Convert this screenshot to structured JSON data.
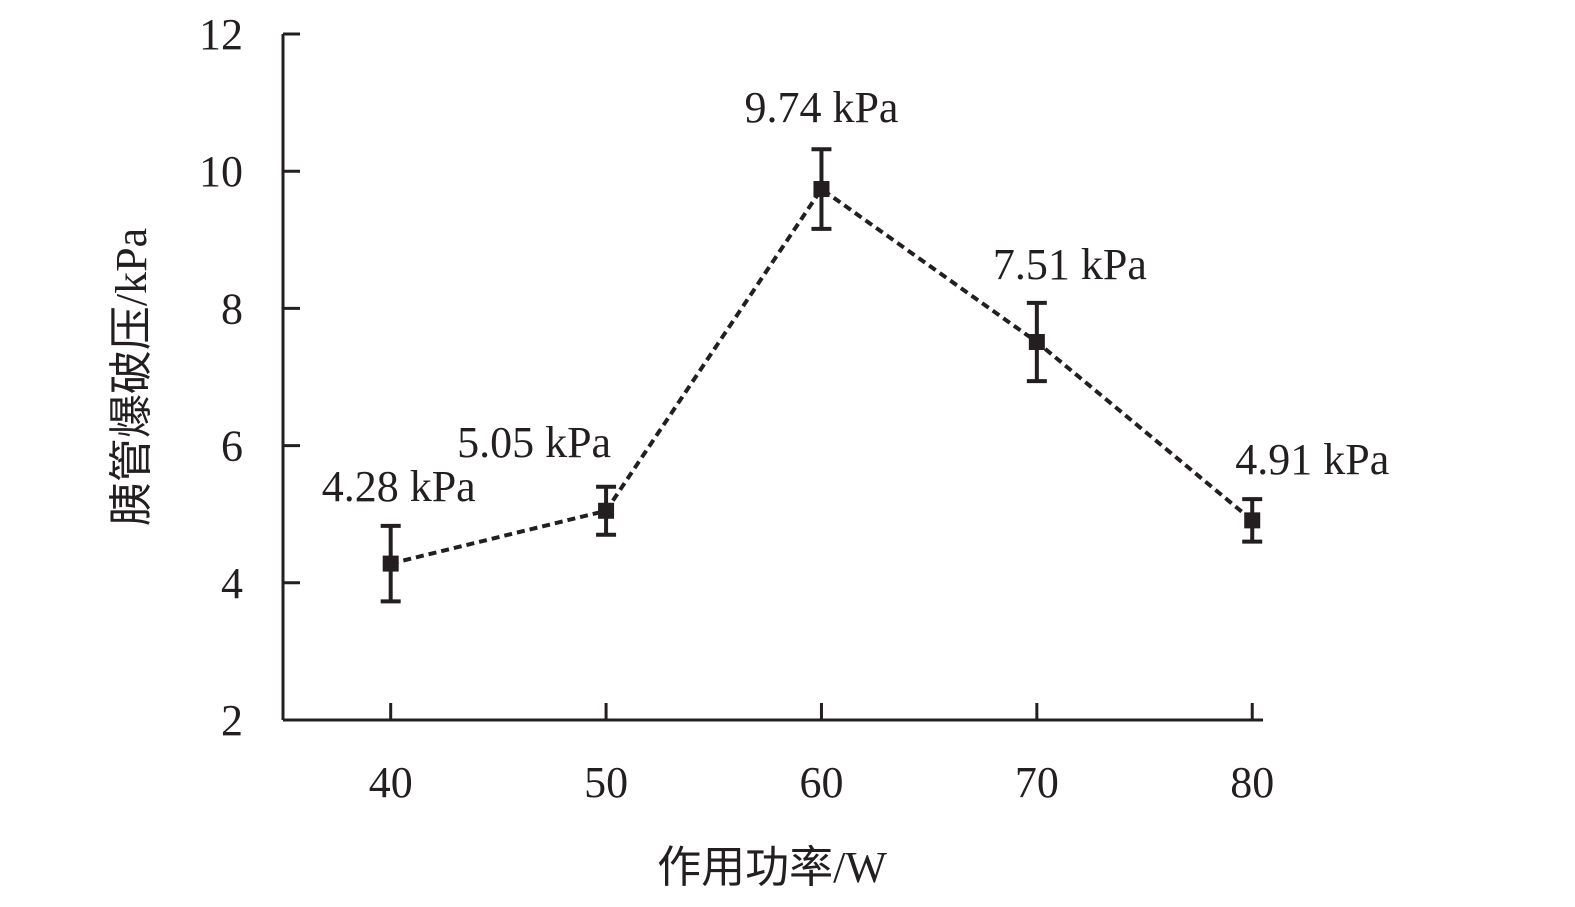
{
  "chart_data": {
    "type": "line",
    "xlabel": "作用功率/W",
    "ylabel": "胰管爆破压/kPa",
    "x": [
      40,
      50,
      60,
      70,
      80
    ],
    "xticks": [
      40,
      50,
      60,
      70,
      80
    ],
    "xlim": [
      35,
      80.5
    ],
    "ylim": [
      2,
      12
    ],
    "yticks": [
      2,
      4,
      6,
      8,
      10,
      12
    ],
    "grid": false,
    "legend": "none",
    "line_style": "dashed",
    "marker": "square",
    "color": "#231f20",
    "series": [
      {
        "values": [
          4.28,
          5.05,
          9.74,
          7.51,
          4.91
        ],
        "errors": [
          0.55,
          0.35,
          0.58,
          0.57,
          0.31
        ],
        "labels": [
          "4.28 kPa",
          "5.05 kPa",
          "9.74 kPa",
          "7.51 kPa",
          "4.91 kPa"
        ]
      }
    ]
  }
}
